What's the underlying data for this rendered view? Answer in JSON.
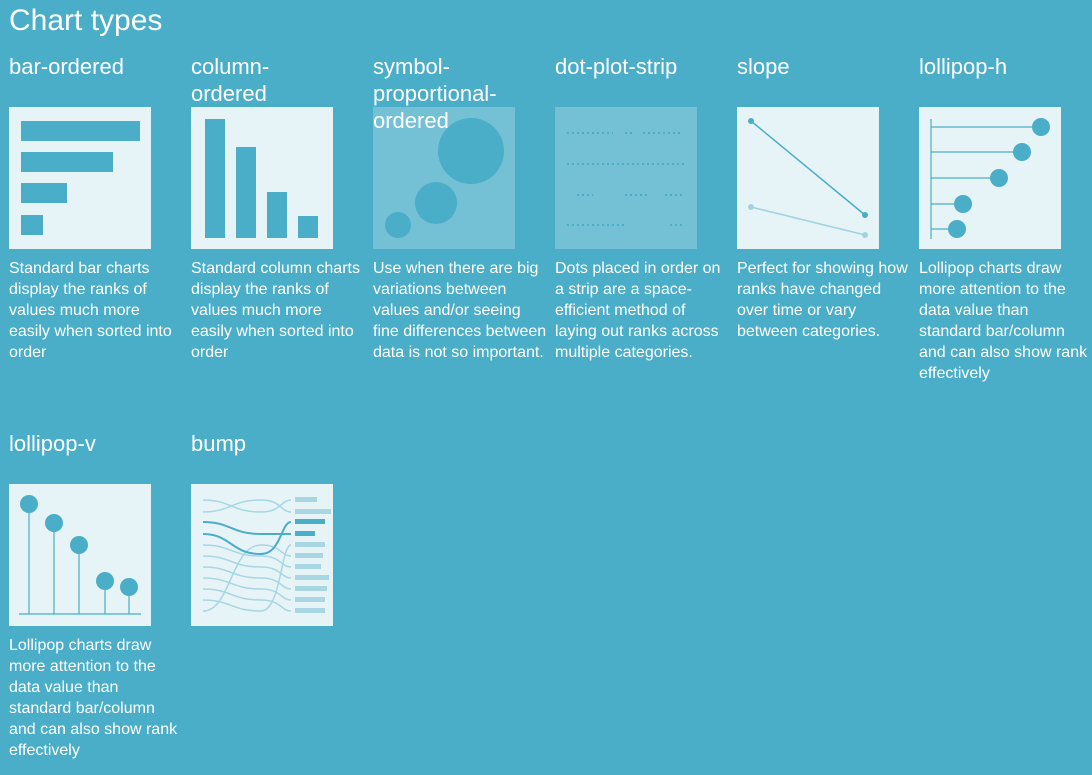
{
  "header": {
    "title": "Chart types"
  },
  "cards": [
    {
      "name": "bar-ordered",
      "description": "Standard bar charts display the ranks of values much more easily when sorted into order"
    },
    {
      "name": "column-ordered",
      "description": "Standard column charts display the ranks of values much more easily when sorted into order"
    },
    {
      "name": "symbol-proportional-ordered",
      "description": "Use when there are big variations between values and/or seeing fine differences between data is not so important."
    },
    {
      "name": "dot-plot-strip",
      "description": "Dots placed in order on a strip are a space-efficient method of laying out ranks across multiple categories."
    },
    {
      "name": "slope",
      "description": "Perfect for showing how ranks have changed over time or vary between categories."
    },
    {
      "name": "lollipop-h",
      "description": "Lollipop charts draw more attention to the data value than standard bar/column and can also show rank effectively"
    },
    {
      "name": "lollipop-v",
      "description": "Lollipop charts draw more attention to the data value than standard bar/column and can also show rank effectively"
    },
    {
      "name": "bump",
      "description": ""
    }
  ]
}
